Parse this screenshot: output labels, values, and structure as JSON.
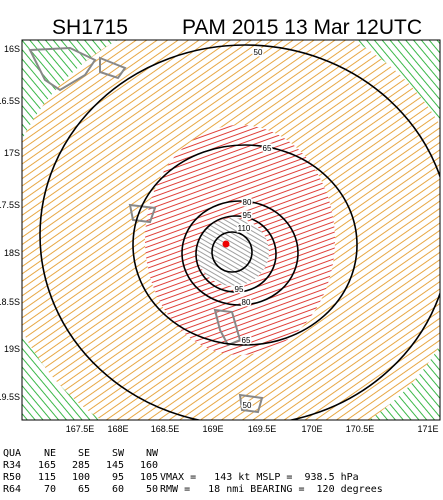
{
  "header": {
    "storm_id": "SH1715",
    "title": "PAM 2015 13 Mar 12UTC"
  },
  "map": {
    "lat_labels": [
      "16S",
      "16.5S",
      "17S",
      "17.5S",
      "18S",
      "18.5S",
      "19S",
      "19.5S"
    ],
    "lon_labels": [
      "167.5E",
      "168E",
      "168.5E",
      "169E",
      "169.5E",
      "170E",
      "170.5E",
      "171E"
    ],
    "contour_labels": [
      "50",
      "65",
      "80",
      "95",
      "110",
      "95",
      "80",
      "65",
      "50"
    ]
  },
  "table": {
    "columns": [
      "QUA",
      "NE",
      "SE",
      "SW",
      "NW"
    ],
    "rows": [
      [
        "R34",
        "165",
        "285",
        "145",
        "160"
      ],
      [
        "R50",
        "115",
        "100",
        "95",
        "105"
      ],
      [
        "R64",
        "70",
        "65",
        "60",
        "50"
      ]
    ]
  },
  "stats": [
    "VMAX =   143 kt MSLP =  938.5 hPa",
    "RMW =   18 nmi BEARING =  120 degrees"
  ]
}
